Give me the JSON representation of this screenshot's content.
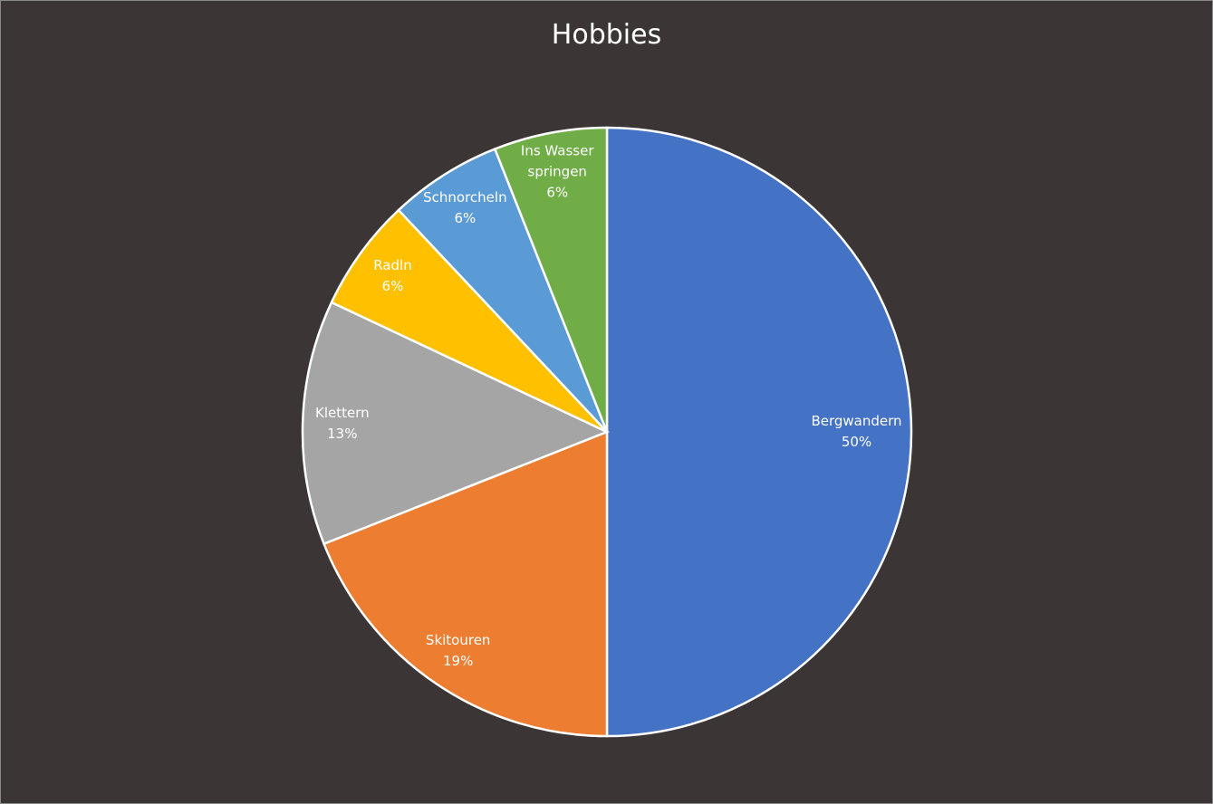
{
  "chart_data": {
    "type": "pie",
    "title": "Hobbies",
    "categories": [
      "Bergwandern",
      "Skitouren",
      "Klettern",
      "Radln",
      "Schnorcheln",
      "Ins Wasser springen"
    ],
    "values": [
      50,
      19,
      13,
      6,
      6,
      6
    ],
    "value_labels": [
      "50%",
      "19%",
      "13%",
      "6%",
      "6%",
      "6%"
    ],
    "colors": [
      "#4472c4",
      "#ed7d31",
      "#a5a5a5",
      "#ffc000",
      "#5b9bd5",
      "#70ad47"
    ]
  }
}
